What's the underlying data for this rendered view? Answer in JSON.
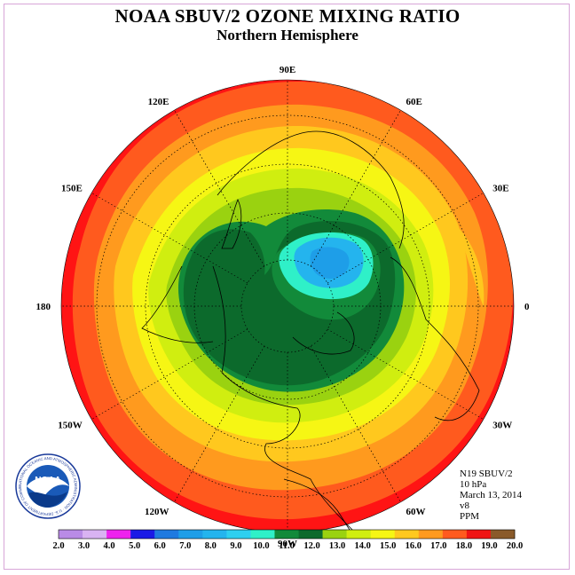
{
  "title": "NOAA SBUV/2 OZONE MIXING RATIO",
  "subtitle": "Northern Hemisphere",
  "longitude_labels": [
    "90E",
    "60E",
    "30E",
    "0",
    "30W",
    "60W",
    "90W",
    "120W",
    "150W",
    "180",
    "150E",
    "120E"
  ],
  "info": {
    "satellite": "N19 SBUV/2",
    "pressure": "10 hPa",
    "date": "March 13, 2014",
    "version": "v8",
    "units": "PPM"
  },
  "logo": {
    "text": "NOAA",
    "ring_text": "NATIONAL OCEANIC AND ATMOSPHERIC ADMINISTRATION · U.S. DEPARTMENT OF COMMERCE"
  },
  "colorbar": {
    "labels": [
      "2.0",
      "3.0",
      "4.0",
      "5.0",
      "6.0",
      "7.0",
      "8.0",
      "9.0",
      "10.0",
      "11.0",
      "12.0",
      "13.0",
      "14.0",
      "15.0",
      "16.0",
      "17.0",
      "18.0",
      "19.0",
      "20.0"
    ],
    "colors": [
      "#b98be6",
      "#d9b3f2",
      "#ee22ee",
      "#1a1ae6",
      "#1f7ae0",
      "#1e9ee8",
      "#24b4ee",
      "#2ecff0",
      "#2ff0c8",
      "#128a3a",
      "#0c6a2c",
      "#9ad210",
      "#d0ee10",
      "#f6f614",
      "#ffc81e",
      "#ff9a1e",
      "#ff5a1e",
      "#f01414",
      "#8a5a2a"
    ]
  },
  "map_colors": {
    "ocean_red": "#ff1414",
    "orange_red": "#ff5a1e",
    "orange": "#ff9a1e",
    "gold": "#ffc81e",
    "yellow": "#f6f614",
    "light_green": "#d0ee10",
    "lime": "#9ad210",
    "green": "#128a3a",
    "dark_green": "#0c6a2c",
    "cyan": "#2ff0c8",
    "sky": "#24b4ee",
    "blue": "#1e9ee8"
  }
}
